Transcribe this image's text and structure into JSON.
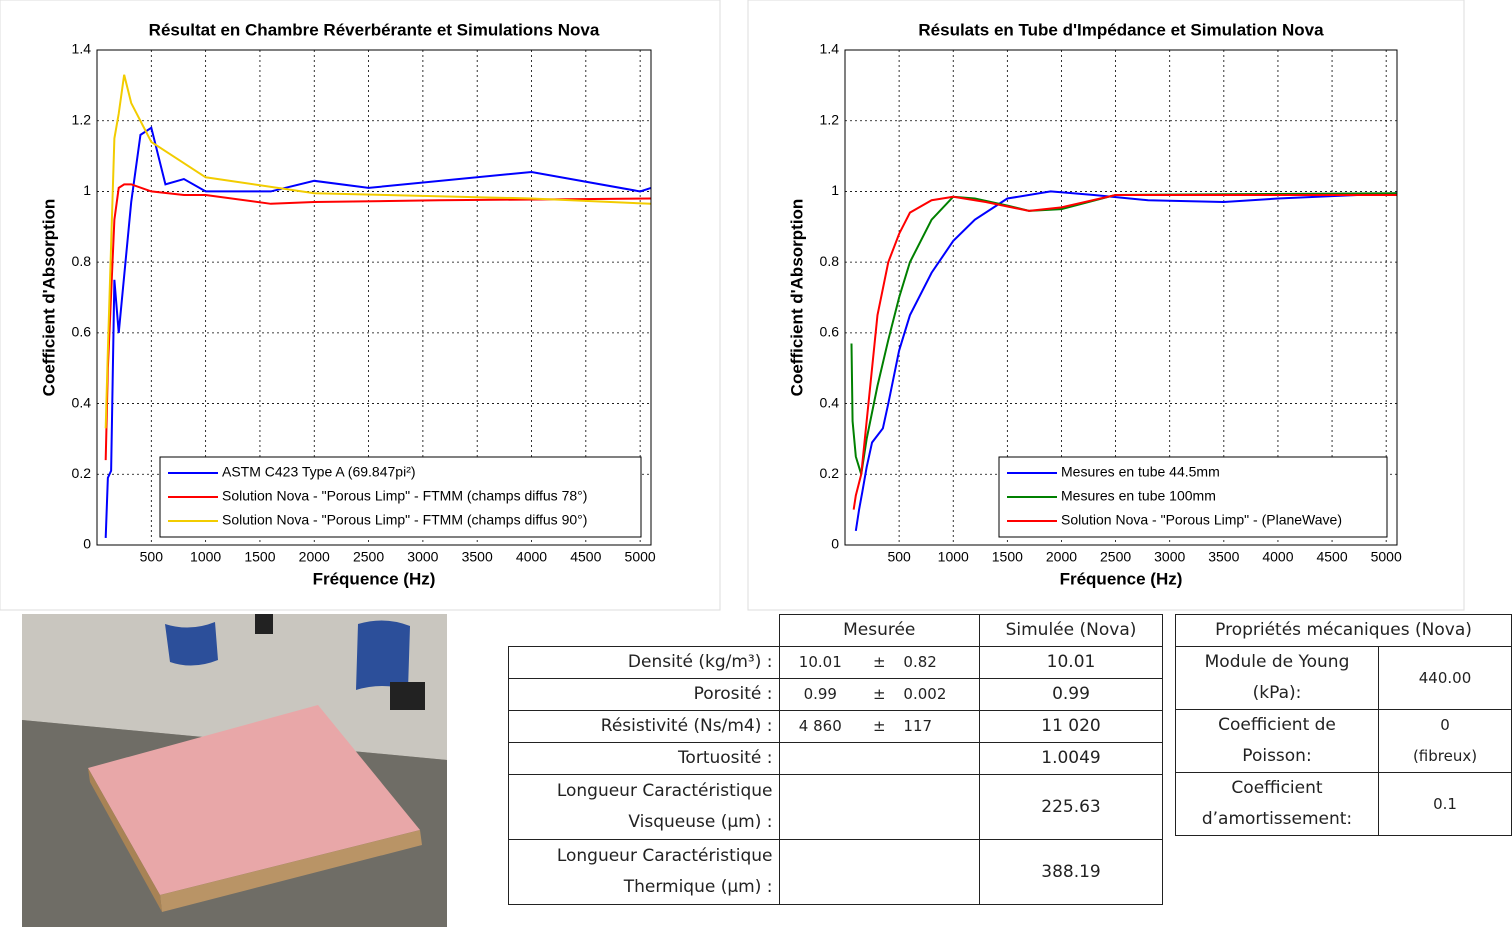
{
  "chart_data": [
    {
      "type": "line",
      "title": "Résultat en Chambre Réverbérante et Simulations Nova",
      "xlabel": "Fréquence (Hz)",
      "ylabel": "Coefficient d'Absorption",
      "xlim": [
        0,
        5100
      ],
      "ylim": [
        0,
        1.4
      ],
      "xticks": [
        500,
        1000,
        1500,
        2000,
        2500,
        3000,
        3500,
        4000,
        4500,
        5000
      ],
      "yticks": [
        0,
        0.2,
        0.4,
        0.6,
        0.8,
        1,
        1.2,
        1.4
      ],
      "grid": true,
      "legend": "lower right",
      "series": [
        {
          "name": "ASTM C423 Type A (69.847pi²)",
          "color": "#0000ff",
          "x": [
            80,
            100,
            130,
            160,
            200,
            315,
            400,
            500,
            630,
            800,
            1000,
            1600,
            2000,
            2500,
            4000,
            5000,
            5100
          ],
          "values": [
            0.02,
            0.19,
            0.21,
            0.75,
            0.6,
            0.97,
            1.16,
            1.18,
            1.02,
            1.035,
            1.0,
            1.0,
            1.03,
            1.01,
            1.055,
            1.0,
            1.01
          ]
        },
        {
          "name": "Solution Nova - \"Porous Limp\" - FTMM (champs diffus 78°)",
          "color": "#ff0000",
          "x": [
            80,
            100,
            160,
            200,
            250,
            315,
            500,
            800,
            1000,
            1600,
            2000,
            3150,
            5100
          ],
          "values": [
            0.24,
            0.5,
            0.92,
            1.01,
            1.02,
            1.02,
            1.0,
            0.99,
            0.99,
            0.965,
            0.97,
            0.975,
            0.98
          ]
        },
        {
          "name": "Solution Nova - \"Porous Limp\" - FTMM (champs diffus 90°)",
          "color": "#f2cc00",
          "x": [
            80,
            100,
            160,
            200,
            250,
            315,
            500,
            1000,
            2000,
            4000,
            5100
          ],
          "values": [
            0.33,
            0.55,
            1.15,
            1.22,
            1.33,
            1.25,
            1.14,
            1.04,
            0.995,
            0.98,
            0.965
          ]
        }
      ]
    },
    {
      "type": "line",
      "title": "Résulats en Tube d'Impédance et Simulation Nova",
      "xlabel": "Fréquence (Hz)",
      "ylabel": "Coefficient d'Absorption",
      "xlim": [
        0,
        5100
      ],
      "ylim": [
        0,
        1.4
      ],
      "xticks": [
        500,
        1000,
        1500,
        2000,
        2500,
        3000,
        3500,
        4000,
        4500,
        5000
      ],
      "yticks": [
        0,
        0.2,
        0.4,
        0.6,
        0.8,
        1,
        1.2,
        1.4
      ],
      "grid": true,
      "legend": "lower right",
      "series": [
        {
          "name": "Mesures en tube 44.5mm",
          "color": "#0000ff",
          "x": [
            100,
            130,
            160,
            200,
            250,
            350,
            400,
            500,
            600,
            800,
            1000,
            1200,
            1500,
            1900,
            2300,
            2800,
            3500,
            4000,
            5100
          ],
          "values": [
            0.04,
            0.1,
            0.15,
            0.22,
            0.29,
            0.33,
            0.4,
            0.55,
            0.65,
            0.77,
            0.86,
            0.92,
            0.98,
            1.0,
            0.99,
            0.975,
            0.97,
            0.98,
            0.995
          ]
        },
        {
          "name": "Mesures en tube 100mm",
          "color": "#008000",
          "x": [
            60,
            70,
            100,
            150,
            200,
            300,
            400,
            500,
            600,
            800,
            1000,
            1200,
            1500,
            1700,
            2000,
            2500,
            5100
          ],
          "values": [
            0.57,
            0.35,
            0.25,
            0.2,
            0.3,
            0.45,
            0.58,
            0.7,
            0.8,
            0.92,
            0.985,
            0.98,
            0.96,
            0.945,
            0.95,
            0.99,
            0.995
          ]
        },
        {
          "name": "Solution Nova - \"Porous Limp\" - (PlaneWave)",
          "color": "#ff0000",
          "x": [
            80,
            100,
            150,
            200,
            300,
            400,
            500,
            600,
            800,
            1000,
            1300,
            1700,
            2000,
            2500,
            5100
          ],
          "values": [
            0.1,
            0.14,
            0.2,
            0.35,
            0.65,
            0.8,
            0.88,
            0.94,
            0.975,
            0.985,
            0.97,
            0.945,
            0.955,
            0.99,
            0.99
          ]
        }
      ]
    }
  ],
  "properties_table": {
    "header": [
      "Mesurée",
      "Simulée (Nova)"
    ],
    "rows": [
      {
        "label": "Densité (kg/m³) :",
        "measured": [
          "10.01",
          "±",
          "0.82"
        ],
        "simulated": "10.01"
      },
      {
        "label": "Porosité :",
        "measured": [
          "0.99",
          "±",
          "0.002"
        ],
        "simulated": "0.99"
      },
      {
        "label": "Résistivité (Ns/m4) :",
        "measured": [
          "4 860",
          "±",
          "117"
        ],
        "simulated": "11 020"
      },
      {
        "label": "Tortuosité :",
        "simulated": "1.0049"
      },
      {
        "label": "Longueur Caractéristique\nVisqueuse (µm) :",
        "simulated": "225.63"
      },
      {
        "label": "Longueur Caractéristique\nThermique (µm) :",
        "simulated": "388.19"
      }
    ]
  },
  "mechanical_table": {
    "title": "Propriétés mécaniques (Nova)",
    "rows": [
      [
        "Module de Young\n(kPa):",
        "440.00"
      ],
      [
        "Coefficient de\nPoisson:",
        "0\n(fibreux)"
      ],
      [
        "Coefficient\nd’amortissement:",
        "0.1"
      ]
    ]
  }
}
